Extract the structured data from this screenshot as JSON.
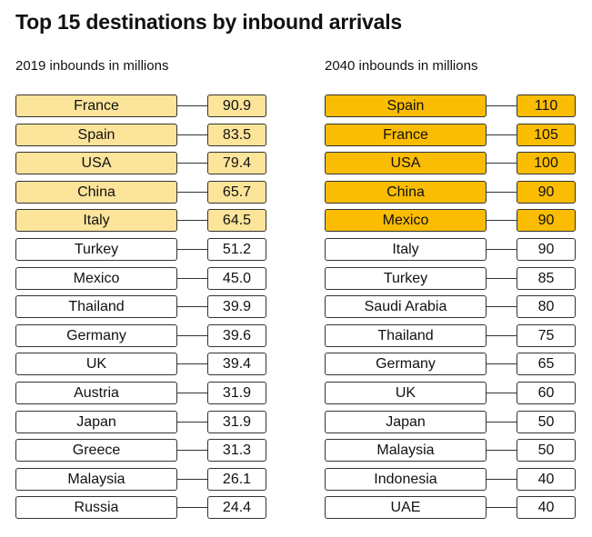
{
  "title": "Top 15 destinations by inbound arrivals",
  "chart_data": [
    {
      "type": "table",
      "title": "2019 inbounds in millions",
      "highlight_color": "#FCE49A",
      "highlight_count": 5,
      "rows": [
        {
          "country": "France",
          "value": "90.9"
        },
        {
          "country": "Spain",
          "value": "83.5"
        },
        {
          "country": "USA",
          "value": "79.4"
        },
        {
          "country": "China",
          "value": "65.7"
        },
        {
          "country": "Italy",
          "value": "64.5"
        },
        {
          "country": "Turkey",
          "value": "51.2"
        },
        {
          "country": "Mexico",
          "value": "45.0"
        },
        {
          "country": "Thailand",
          "value": "39.9"
        },
        {
          "country": "Germany",
          "value": "39.6"
        },
        {
          "country": "UK",
          "value": "39.4"
        },
        {
          "country": "Austria",
          "value": "31.9"
        },
        {
          "country": "Japan",
          "value": "31.9"
        },
        {
          "country": "Greece",
          "value": "31.3"
        },
        {
          "country": "Malaysia",
          "value": "26.1"
        },
        {
          "country": "Russia",
          "value": "24.4"
        }
      ]
    },
    {
      "type": "table",
      "title": "2040 inbounds in millions",
      "highlight_color": "#FBBC04",
      "highlight_count": 5,
      "rows": [
        {
          "country": "Spain",
          "value": "110"
        },
        {
          "country": "France",
          "value": "105"
        },
        {
          "country": "USA",
          "value": "100"
        },
        {
          "country": "China",
          "value": "90"
        },
        {
          "country": "Mexico",
          "value": "90"
        },
        {
          "country": "Italy",
          "value": "90"
        },
        {
          "country": "Turkey",
          "value": "85"
        },
        {
          "country": "Saudi Arabia",
          "value": "80"
        },
        {
          "country": "Thailand",
          "value": "75"
        },
        {
          "country": "Germany",
          "value": "65"
        },
        {
          "country": "UK",
          "value": "60"
        },
        {
          "country": "Japan",
          "value": "50"
        },
        {
          "country": "Malaysia",
          "value": "50"
        },
        {
          "country": "Indonesia",
          "value": "40"
        },
        {
          "country": "UAE",
          "value": "40"
        }
      ]
    }
  ]
}
